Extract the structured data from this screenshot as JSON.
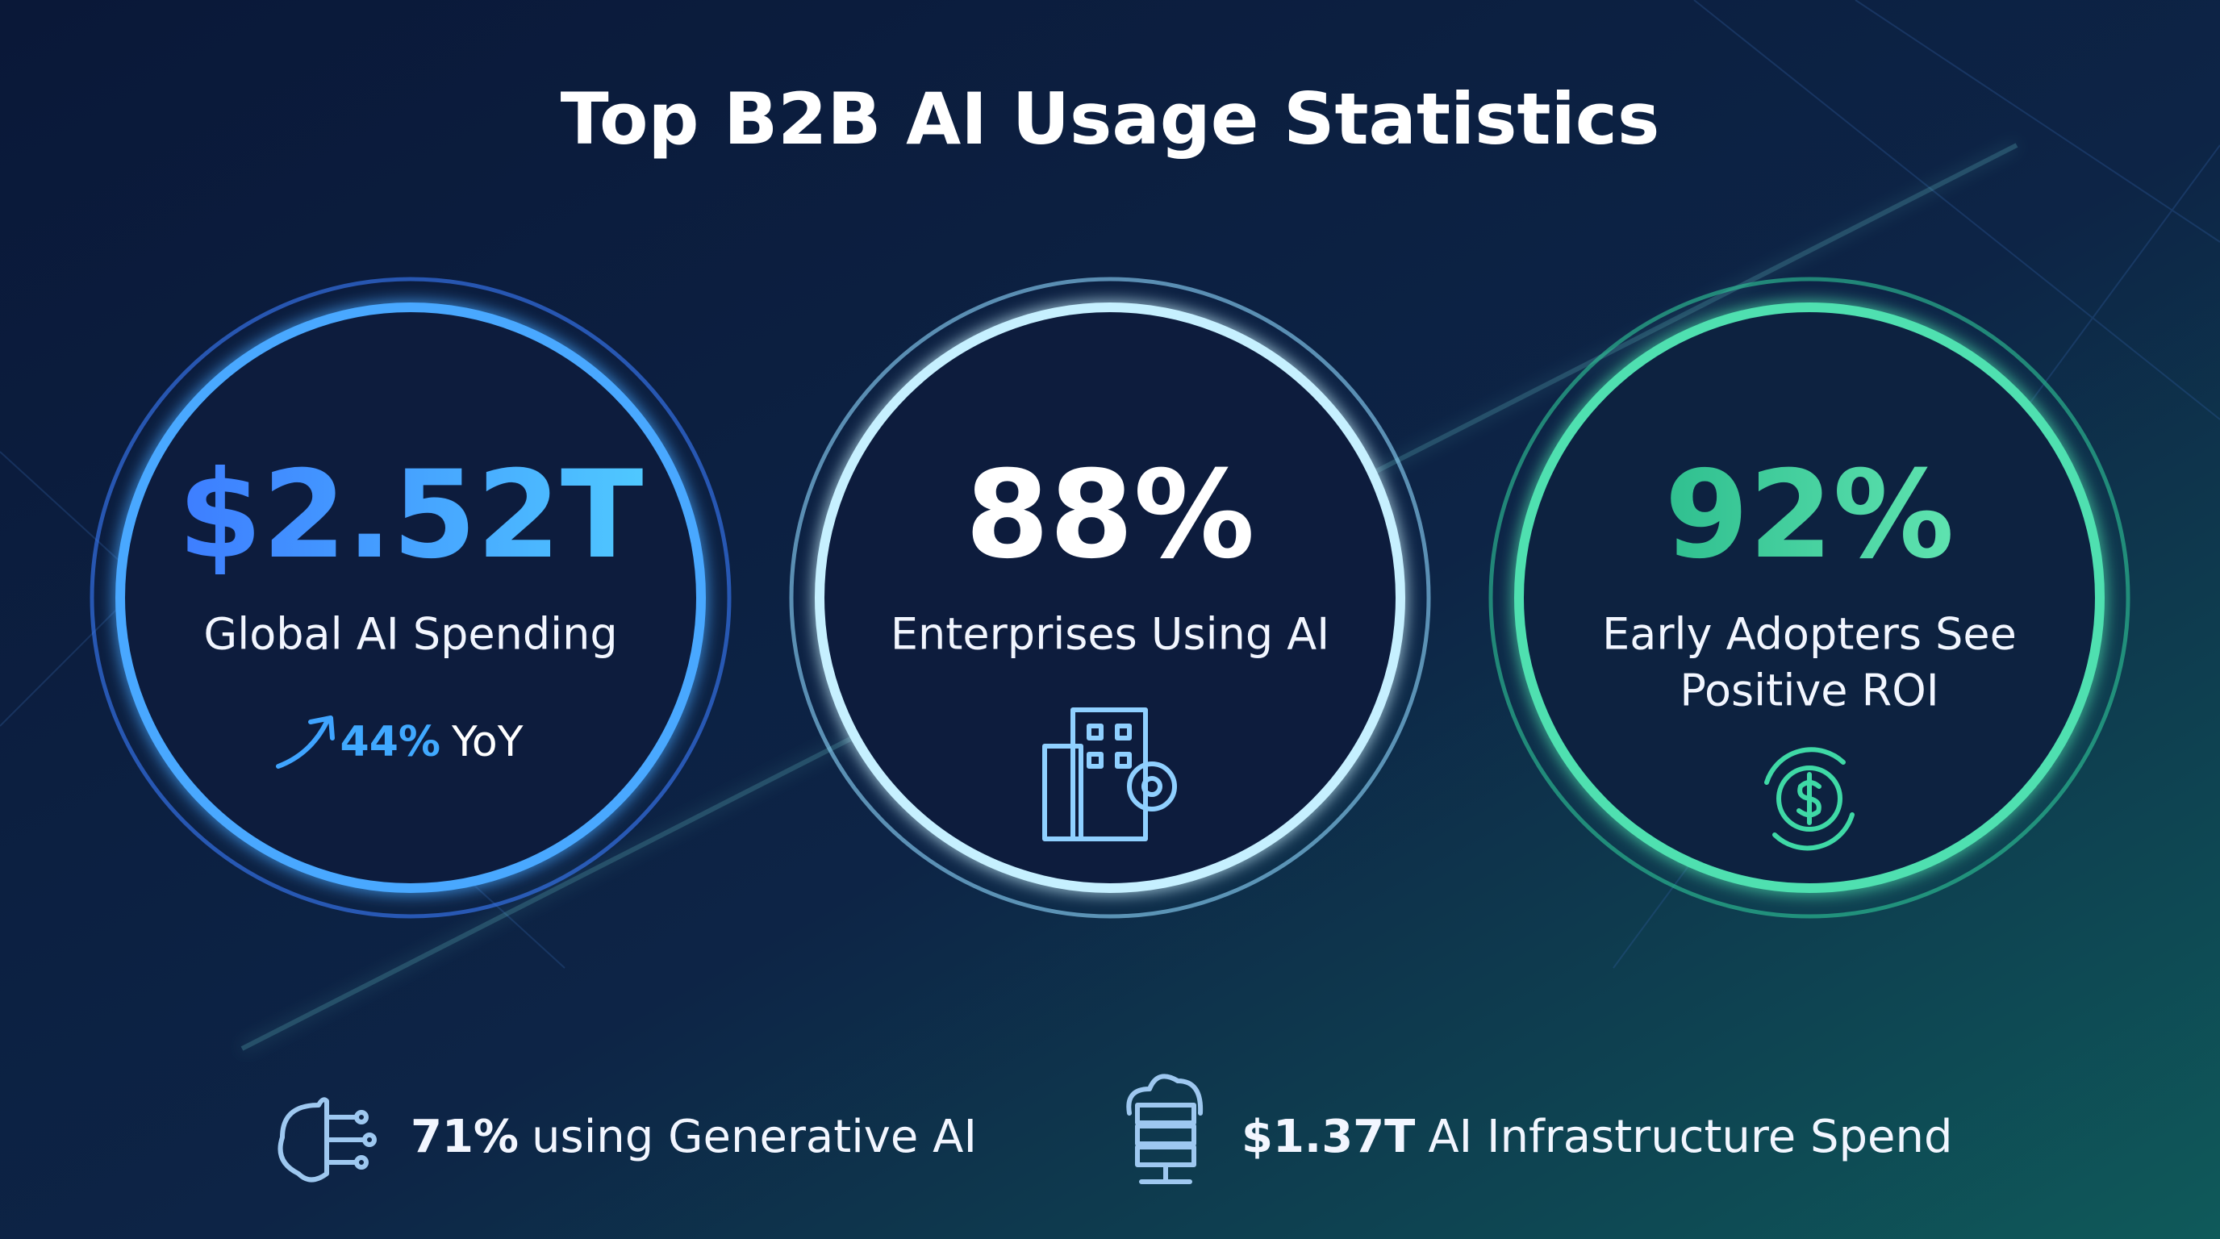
{
  "header": {
    "title": "Top B2B AI Usage Statistics"
  },
  "stats": [
    {
      "value": "$2.52T",
      "label_lines": [
        "Global AI Spending"
      ],
      "trend": "44%",
      "trend_suffix": "YoY"
    },
    {
      "value": "88%",
      "label_lines": [
        "Enterprises Using AI"
      ]
    },
    {
      "value": "92%",
      "label_lines": [
        "Early Adopters See",
        "Positive ROI"
      ]
    }
  ],
  "footer": [
    {
      "value": "71%",
      "text": "using Generative AI"
    },
    {
      "value": "$1.37T",
      "text": "AI Infrastructure Spend"
    }
  ]
}
